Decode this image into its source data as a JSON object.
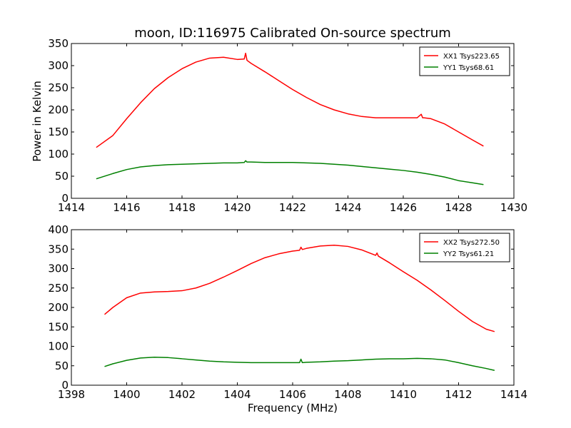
{
  "chart_data": [
    {
      "type": "line",
      "title": "moon, ID:116975 Calibrated On-source spectrum",
      "xlabel": "",
      "ylabel": "Power in Kelvin",
      "xlim": [
        1414,
        1430
      ],
      "ylim": [
        0,
        350
      ],
      "xticks": [
        1414,
        1416,
        1418,
        1420,
        1422,
        1424,
        1426,
        1428,
        1430
      ],
      "yticks": [
        0,
        50,
        100,
        150,
        200,
        250,
        300,
        350
      ],
      "legend_position": "top-right",
      "series": [
        {
          "name": "XX1 Tsys223.65",
          "color": "#ff0000",
          "x": [
            1414.9,
            1415.5,
            1416.0,
            1416.5,
            1417.0,
            1417.5,
            1418.0,
            1418.5,
            1419.0,
            1419.5,
            1420.0,
            1420.25,
            1420.3,
            1420.35,
            1420.5,
            1421.0,
            1421.5,
            1422.0,
            1422.5,
            1423.0,
            1423.5,
            1424.0,
            1424.5,
            1425.0,
            1425.5,
            1426.0,
            1426.5,
            1426.65,
            1426.7,
            1426.75,
            1427.0,
            1427.5,
            1428.0,
            1428.5,
            1428.9
          ],
          "y": [
            115,
            142,
            180,
            216,
            248,
            273,
            293,
            308,
            317,
            319,
            314,
            315,
            328,
            312,
            305,
            286,
            266,
            246,
            228,
            212,
            200,
            191,
            185,
            182,
            182,
            182,
            182,
            190,
            182,
            182,
            180,
            168,
            150,
            132,
            118
          ]
        },
        {
          "name": "YY1 Tsys68.61",
          "color": "#008000",
          "x": [
            1414.9,
            1415.5,
            1416.0,
            1416.5,
            1417.0,
            1417.5,
            1418.0,
            1418.5,
            1419.0,
            1419.5,
            1420.0,
            1420.25,
            1420.3,
            1420.35,
            1420.5,
            1421.0,
            1421.5,
            1422.0,
            1422.5,
            1423.0,
            1423.5,
            1424.0,
            1424.5,
            1425.0,
            1425.5,
            1426.0,
            1426.5,
            1427.0,
            1427.5,
            1428.0,
            1428.5,
            1428.9
          ],
          "y": [
            44,
            56,
            65,
            71,
            74,
            76,
            77,
            78,
            79,
            80,
            80,
            81,
            85,
            82,
            82,
            81,
            81,
            81,
            80,
            79,
            77,
            75,
            72,
            69,
            66,
            63,
            59,
            54,
            48,
            40,
            35,
            31
          ]
        }
      ]
    },
    {
      "type": "line",
      "title": "",
      "xlabel": "Frequency (MHz)",
      "ylabel": "",
      "xlim": [
        1398,
        1414
      ],
      "ylim": [
        0,
        400
      ],
      "xticks": [
        1398,
        1400,
        1402,
        1404,
        1406,
        1408,
        1410,
        1412,
        1414
      ],
      "yticks": [
        0,
        50,
        100,
        150,
        200,
        250,
        300,
        350,
        400
      ],
      "legend_position": "top-right",
      "series": [
        {
          "name": "XX2 Tsys272.50",
          "color": "#ff0000",
          "x": [
            1399.2,
            1399.5,
            1400.0,
            1400.5,
            1401.0,
            1401.5,
            1402.0,
            1402.5,
            1403.0,
            1403.5,
            1404.0,
            1404.5,
            1405.0,
            1405.5,
            1406.0,
            1406.25,
            1406.3,
            1406.35,
            1406.5,
            1407.0,
            1407.5,
            1408.0,
            1408.5,
            1409.0,
            1409.05,
            1409.1,
            1409.5,
            1410.0,
            1410.5,
            1411.0,
            1411.5,
            1412.0,
            1412.5,
            1413.0,
            1413.3
          ],
          "y": [
            182,
            200,
            225,
            237,
            240,
            241,
            243,
            250,
            262,
            278,
            295,
            313,
            328,
            338,
            345,
            347,
            355,
            349,
            352,
            358,
            360,
            357,
            348,
            334,
            340,
            332,
            315,
            292,
            270,
            245,
            218,
            190,
            164,
            144,
            138
          ]
        },
        {
          "name": "YY2 Tsys61.21",
          "color": "#008000",
          "x": [
            1399.2,
            1399.5,
            1400.0,
            1400.5,
            1401.0,
            1401.5,
            1402.0,
            1402.5,
            1403.0,
            1403.5,
            1404.0,
            1404.5,
            1405.0,
            1405.5,
            1406.0,
            1406.25,
            1406.3,
            1406.35,
            1406.5,
            1407.0,
            1407.5,
            1408.0,
            1408.5,
            1409.0,
            1409.5,
            1410.0,
            1410.5,
            1411.0,
            1411.5,
            1412.0,
            1412.5,
            1413.0,
            1413.3
          ],
          "y": [
            48,
            55,
            64,
            70,
            72,
            71,
            68,
            65,
            62,
            60,
            59,
            58,
            58,
            58,
            58,
            58,
            67,
            58,
            59,
            60,
            62,
            63,
            65,
            67,
            68,
            68,
            69,
            68,
            65,
            58,
            50,
            43,
            38
          ]
        }
      ]
    }
  ]
}
